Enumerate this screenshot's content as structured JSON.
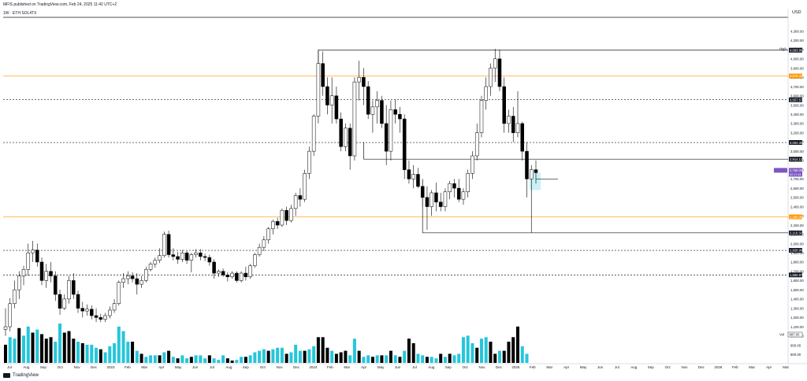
{
  "header": {
    "publisher_line": "MFIS published on TradingView.com, Feb 24, 2025 11:42 UTC+2",
    "legend": "1W · ETH  SOL4TX"
  },
  "footer": {
    "brand": "TradingView"
  },
  "colors": {
    "bull_candle": "#ffffff",
    "bear_candle": "#000000",
    "wick": "#000000",
    "volume_bull": "#26c6da",
    "volume_bear": "#000000",
    "orange_level": "#ff9800",
    "dashed_level": "#131722",
    "box_fill": "#b2ebf2"
  },
  "chart_data": {
    "type": "candlestick",
    "currency": "USD",
    "y_axis_ticks": [
      4300,
      4200,
      4100,
      4000,
      3900,
      3800,
      3700,
      3600,
      3500,
      3400,
      3300,
      3200,
      3100,
      3000,
      2900,
      2800,
      2700,
      2600,
      2500,
      2400,
      2300,
      2200,
      2100,
      2000,
      1900,
      1800,
      1700,
      1600,
      1500,
      1400,
      1300,
      1200,
      1100,
      1000,
      900,
      800,
      700
    ],
    "y_axis_tick_labels": [
      "4,300.00",
      "4,200.00",
      "4,100.00",
      "4,000.00",
      "3,900.00",
      "3,800.00",
      "3,700.00",
      "3,600.00",
      "3,500.00",
      "3,400.00",
      "3,300.00",
      "3,200.00",
      "3,100.00",
      "3,000.00",
      "2,900.00",
      "2,800.00",
      "2,700.00",
      "2,600.00",
      "2,500.00",
      "2,400.00",
      "2,300.00",
      "2,200.00",
      "2,100.00",
      "2,000.00",
      "1,900.00",
      "1,800.00",
      "1,700.00",
      "1,600.00",
      "1,500.00",
      "1,400.00",
      "1,300.00",
      "1,200.00",
      "1,100.00",
      "1,000.00",
      "900.00",
      "800.00",
      "700.00"
    ],
    "y_range": [
      700,
      4450
    ],
    "x_axis_labels": [
      "Jul",
      "Aug",
      "Sep",
      "Oct",
      "Nov",
      "Dec",
      "2023",
      "Feb",
      "Mar",
      "Apr",
      "May",
      "Jun",
      "Jul",
      "Aug",
      "Sep",
      "Oct",
      "Nov",
      "Dec",
      "2024",
      "Feb",
      "Mar",
      "Apr",
      "May",
      "Jun",
      "Jul",
      "Aug",
      "Sep",
      "Oct",
      "Nov",
      "Dec",
      "2025",
      "Feb",
      "Mar",
      "Apr",
      "May",
      "Jun",
      "Jul",
      "Aug",
      "Sep",
      "Oct",
      "Nov",
      "Dec",
      "2026",
      "Feb",
      "Mar",
      "Apr",
      "Mat"
    ],
    "horizontal_levels": [
      {
        "label": "High",
        "value": 4109.36,
        "price_label": "4,109.36",
        "style": "solid"
      },
      {
        "value": 4093.88,
        "price_label": "4,093.88",
        "style": "solid"
      },
      {
        "value": 3815.42,
        "price_label": "3,815.42",
        "style": "orange"
      },
      {
        "value": 3557.57,
        "price_label": "3,557.57",
        "style": "dashed"
      },
      {
        "value": 3094.36,
        "price_label": "3,094.36",
        "style": "dashed"
      },
      {
        "value": 2914.12,
        "price_label": "2,914.12",
        "style": "solid"
      },
      {
        "value": 2289.06,
        "price_label": "2,289.06",
        "style": "orange"
      },
      {
        "value": 2116.32,
        "price_label": "2,116.32",
        "style": "solid"
      },
      {
        "value": 1926.9,
        "price_label": "1,926.90",
        "style": "dashed"
      },
      {
        "value": 1660.97,
        "price_label": "1,660.97",
        "style": "dashed"
      }
    ],
    "last_price": {
      "value": 2768.0,
      "price_label": "2,768.00",
      "countdown": "02:17:41"
    },
    "volume_label": {
      "name": "Vol",
      "value": "997.00"
    },
    "candles": [
      [
        1072,
        1300,
        1000,
        1100
      ],
      [
        1100,
        1410,
        1050,
        1350
      ],
      [
        1350,
        1600,
        1300,
        1500
      ],
      [
        1500,
        1700,
        1400,
        1650
      ],
      [
        1650,
        1760,
        1550,
        1720
      ],
      [
        1720,
        2000,
        1650,
        1900
      ],
      [
        1900,
        2030,
        1800,
        1930
      ],
      [
        1930,
        2000,
        1750,
        1800
      ],
      [
        1800,
        1850,
        1550,
        1600
      ],
      [
        1600,
        1780,
        1520,
        1700
      ],
      [
        1700,
        1800,
        1580,
        1650
      ],
      [
        1650,
        1700,
        1380,
        1450
      ],
      [
        1450,
        1500,
        1230,
        1300
      ],
      [
        1300,
        1450,
        1280,
        1400
      ],
      [
        1400,
        1650,
        1350,
        1600
      ],
      [
        1600,
        1680,
        1400,
        1450
      ],
      [
        1450,
        1490,
        1250,
        1300
      ],
      [
        1300,
        1370,
        1200,
        1270
      ],
      [
        1270,
        1340,
        1220,
        1290
      ],
      [
        1290,
        1330,
        1180,
        1220
      ],
      [
        1220,
        1300,
        1150,
        1200
      ],
      [
        1200,
        1240,
        1150,
        1180
      ],
      [
        1180,
        1250,
        1150,
        1220
      ],
      [
        1220,
        1320,
        1190,
        1280
      ],
      [
        1280,
        1400,
        1250,
        1350
      ],
      [
        1350,
        1600,
        1330,
        1580
      ],
      [
        1580,
        1680,
        1520,
        1620
      ],
      [
        1620,
        1700,
        1560,
        1650
      ],
      [
        1650,
        1690,
        1580,
        1620
      ],
      [
        1620,
        1680,
        1450,
        1560
      ],
      [
        1560,
        1650,
        1520,
        1600
      ],
      [
        1600,
        1750,
        1580,
        1720
      ],
      [
        1720,
        1800,
        1700,
        1780
      ],
      [
        1780,
        1850,
        1740,
        1820
      ],
      [
        1820,
        1950,
        1790,
        1870
      ],
      [
        1870,
        2130,
        1850,
        2100
      ],
      [
        2100,
        2140,
        1850,
        1880
      ],
      [
        1880,
        1950,
        1820,
        1860
      ],
      [
        1860,
        1910,
        1780,
        1830
      ],
      [
        1830,
        1930,
        1800,
        1900
      ],
      [
        1900,
        1920,
        1780,
        1820
      ],
      [
        1820,
        1900,
        1690,
        1880
      ],
      [
        1880,
        1940,
        1850,
        1900
      ],
      [
        1900,
        1940,
        1820,
        1860
      ],
      [
        1860,
        1890,
        1810,
        1850
      ],
      [
        1850,
        1880,
        1760,
        1800
      ],
      [
        1800,
        1830,
        1620,
        1680
      ],
      [
        1680,
        1720,
        1640,
        1700
      ],
      [
        1700,
        1730,
        1640,
        1660
      ],
      [
        1660,
        1690,
        1590,
        1640
      ],
      [
        1640,
        1700,
        1620,
        1680
      ],
      [
        1680,
        1700,
        1580,
        1600
      ],
      [
        1600,
        1700,
        1580,
        1680
      ],
      [
        1680,
        1750,
        1600,
        1640
      ],
      [
        1640,
        1780,
        1620,
        1760
      ],
      [
        1760,
        1900,
        1740,
        1880
      ],
      [
        1880,
        2000,
        1860,
        1960
      ],
      [
        1960,
        2080,
        1920,
        2040
      ],
      [
        2040,
        2180,
        2000,
        2160
      ],
      [
        2160,
        2260,
        2100,
        2240
      ],
      [
        2240,
        2280,
        2160,
        2200
      ],
      [
        2200,
        2380,
        2180,
        2360
      ],
      [
        2360,
        2400,
        2200,
        2250
      ],
      [
        2250,
        2420,
        2230,
        2380
      ],
      [
        2380,
        2550,
        2300,
        2520
      ],
      [
        2520,
        2600,
        2400,
        2480
      ],
      [
        2480,
        2800,
        2450,
        2760
      ],
      [
        2760,
        3050,
        2700,
        3000
      ],
      [
        3000,
        3400,
        2950,
        3380
      ],
      [
        3380,
        4100,
        3300,
        3950
      ],
      [
        3950,
        4080,
        3600,
        3700
      ],
      [
        3700,
        3800,
        3400,
        3500
      ],
      [
        3500,
        3800,
        3300,
        3600
      ],
      [
        3600,
        3700,
        3300,
        3350
      ],
      [
        3350,
        3420,
        3000,
        3050
      ],
      [
        3050,
        3300,
        3000,
        3250
      ],
      [
        3250,
        3300,
        2800,
        2950
      ],
      [
        2950,
        3800,
        2900,
        3750
      ],
      [
        3750,
        3980,
        3550,
        3800
      ],
      [
        3800,
        3900,
        3500,
        3700
      ],
      [
        3700,
        3760,
        3350,
        3400
      ],
      [
        3400,
        3550,
        3200,
        3480
      ],
      [
        3480,
        3650,
        3300,
        3550
      ],
      [
        3550,
        3600,
        3250,
        3300
      ],
      [
        3300,
        3500,
        2850,
        3000
      ],
      [
        3000,
        3550,
        2900,
        3450
      ],
      [
        3450,
        3560,
        3300,
        3400
      ],
      [
        3400,
        3480,
        3200,
        3350
      ],
      [
        3350,
        3400,
        2700,
        2800
      ],
      [
        2800,
        2900,
        2650,
        2700
      ],
      [
        2700,
        2850,
        2600,
        2750
      ],
      [
        2750,
        2820,
        2600,
        2620
      ],
      [
        2620,
        2680,
        2400,
        2500
      ],
      [
        2500,
        2620,
        2150,
        2400
      ],
      [
        2400,
        2580,
        2300,
        2550
      ],
      [
        2550,
        2660,
        2350,
        2450
      ],
      [
        2450,
        2550,
        2350,
        2400
      ],
      [
        2400,
        2600,
        2350,
        2560
      ],
      [
        2560,
        2680,
        2480,
        2650
      ],
      [
        2650,
        2700,
        2500,
        2600
      ],
      [
        2600,
        2700,
        2450,
        2480
      ],
      [
        2480,
        2600,
        2420,
        2560
      ],
      [
        2560,
        2800,
        2500,
        2760
      ],
      [
        2760,
        3000,
        2700,
        2950
      ],
      [
        2950,
        3300,
        2900,
        3200
      ],
      [
        3200,
        3600,
        3150,
        3550
      ],
      [
        3550,
        3800,
        3450,
        3700
      ],
      [
        3700,
        3950,
        3600,
        3900
      ],
      [
        3900,
        4109,
        3750,
        4000
      ],
      [
        4000,
        4100,
        3650,
        3700
      ],
      [
        3700,
        3800,
        3200,
        3300
      ],
      [
        3300,
        3450,
        3200,
        3380
      ],
      [
        3380,
        3480,
        3100,
        3200
      ],
      [
        3200,
        3650,
        3150,
        3300
      ],
      [
        3300,
        3320,
        2900,
        3000
      ],
      [
        3000,
        3100,
        2500,
        2700
      ],
      [
        2700,
        2850,
        2120,
        2800
      ],
      [
        2800,
        2900,
        2650,
        2768
      ]
    ],
    "volumes": [
      [
        940,
        0
      ],
      [
        990,
        1
      ],
      [
        980,
        1
      ],
      [
        1050,
        0
      ],
      [
        1000,
        1
      ],
      [
        1060,
        1
      ],
      [
        1020,
        0
      ],
      [
        1040,
        1
      ],
      [
        1010,
        0
      ],
      [
        980,
        0
      ],
      [
        990,
        0
      ],
      [
        960,
        1
      ],
      [
        1080,
        1
      ],
      [
        1020,
        0
      ],
      [
        1030,
        0
      ],
      [
        980,
        0
      ],
      [
        960,
        1
      ],
      [
        950,
        0
      ],
      [
        940,
        1
      ],
      [
        940,
        1
      ],
      [
        920,
        1
      ],
      [
        910,
        0
      ],
      [
        890,
        1
      ],
      [
        930,
        1
      ],
      [
        950,
        1
      ],
      [
        1060,
        1
      ],
      [
        1030,
        1
      ],
      [
        960,
        1
      ],
      [
        960,
        0
      ],
      [
        900,
        1
      ],
      [
        880,
        0
      ],
      [
        860,
        1
      ],
      [
        870,
        1
      ],
      [
        870,
        1
      ],
      [
        870,
        0
      ],
      [
        890,
        1
      ],
      [
        900,
        0
      ],
      [
        860,
        1
      ],
      [
        850,
        0
      ],
      [
        870,
        1
      ],
      [
        850,
        1
      ],
      [
        860,
        0
      ],
      [
        870,
        1
      ],
      [
        870,
        1
      ],
      [
        850,
        1
      ],
      [
        870,
        0
      ],
      [
        850,
        1
      ],
      [
        840,
        1
      ],
      [
        870,
        1
      ],
      [
        850,
        0
      ],
      [
        830,
        0
      ],
      [
        840,
        1
      ],
      [
        860,
        1
      ],
      [
        860,
        0
      ],
      [
        870,
        1
      ],
      [
        890,
        1
      ],
      [
        900,
        1
      ],
      [
        910,
        1
      ],
      [
        900,
        0
      ],
      [
        910,
        1
      ],
      [
        920,
        1
      ],
      [
        920,
        1
      ],
      [
        880,
        0
      ],
      [
        890,
        1
      ],
      [
        940,
        1
      ],
      [
        900,
        1
      ],
      [
        900,
        0
      ],
      [
        910,
        1
      ],
      [
        930,
        1
      ],
      [
        990,
        0
      ],
      [
        990,
        0
      ],
      [
        920,
        0
      ],
      [
        900,
        1
      ],
      [
        880,
        0
      ],
      [
        890,
        0
      ],
      [
        900,
        0
      ],
      [
        870,
        1
      ],
      [
        980,
        1
      ],
      [
        900,
        0
      ],
      [
        860,
        1
      ],
      [
        870,
        1
      ],
      [
        860,
        0
      ],
      [
        870,
        1
      ],
      [
        870,
        0
      ],
      [
        870,
        1
      ],
      [
        900,
        0
      ],
      [
        870,
        1
      ],
      [
        860,
        0
      ],
      [
        900,
        1
      ],
      [
        980,
        0
      ],
      [
        950,
        0
      ],
      [
        880,
        1
      ],
      [
        870,
        1
      ],
      [
        860,
        0
      ],
      [
        860,
        1
      ],
      [
        850,
        1
      ],
      [
        880,
        0
      ],
      [
        860,
        1
      ],
      [
        880,
        0
      ],
      [
        870,
        1
      ],
      [
        880,
        1
      ],
      [
        990,
        1
      ],
      [
        1000,
        1
      ],
      [
        950,
        1
      ],
      [
        920,
        0
      ],
      [
        980,
        1
      ],
      [
        990,
        1
      ],
      [
        960,
        0
      ],
      [
        880,
        0
      ],
      [
        900,
        1
      ],
      [
        900,
        0
      ],
      [
        960,
        0
      ],
      [
        990,
        0
      ],
      [
        1060,
        0
      ],
      [
        930,
        1
      ],
      [
        880,
        1
      ]
    ]
  }
}
